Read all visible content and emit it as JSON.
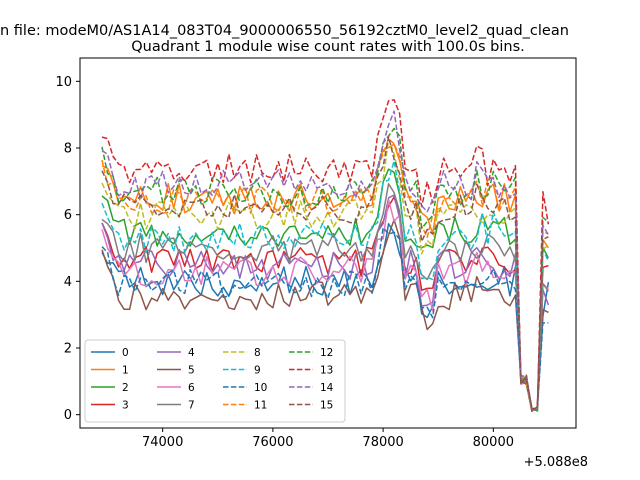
{
  "figure": {
    "suptitle": "n file: modeM0/AS1A14_083T04_9000006550_56192cztM0_level2_quad_clean",
    "offset_label": "+5.088e8"
  },
  "chart_data": {
    "type": "line",
    "title": "Quadrant 1 module wise count rates with 100.0s bins.",
    "xlabel": "",
    "ylabel": "",
    "x_offset": 508800000,
    "xlim": [
      72500,
      81500
    ],
    "ylim": [
      -0.4,
      10.7
    ],
    "x_ticks": [
      74000,
      76000,
      78000,
      80000
    ],
    "x_tick_labels": [
      "74000",
      "76000",
      "78000",
      "80000"
    ],
    "y_ticks": [
      0,
      2,
      4,
      6,
      8,
      10
    ],
    "y_tick_labels": [
      "0",
      "2",
      "4",
      "6",
      "8",
      "10"
    ],
    "grid": false,
    "legend": {
      "position": "lower-left",
      "columns": 4
    },
    "x_start": 72900,
    "x_step": 100,
    "series": [
      {
        "name": "0",
        "color": "#1f77b4",
        "dash": "solid",
        "base": 4.0
      },
      {
        "name": "1",
        "color": "#ff7f0e",
        "dash": "solid",
        "base": 6.5
      },
      {
        "name": "2",
        "color": "#2ca02c",
        "dash": "solid",
        "base": 5.5
      },
      {
        "name": "3",
        "color": "#d62728",
        "dash": "solid",
        "base": 4.6
      },
      {
        "name": "4",
        "color": "#9467bd",
        "dash": "solid",
        "base": 4.5
      },
      {
        "name": "5",
        "color": "#8c564b",
        "dash": "solid",
        "base": 3.6
      },
      {
        "name": "6",
        "color": "#e377c2",
        "dash": "solid",
        "base": 4.3
      },
      {
        "name": "7",
        "color": "#7f7f7f",
        "dash": "solid",
        "base": 5.0
      },
      {
        "name": "8",
        "color": "#bcbd22",
        "dash": "dashed",
        "base": 6.0
      },
      {
        "name": "9",
        "color": "#17becf",
        "dash": "dashed",
        "base": 5.3
      },
      {
        "name": "10",
        "color": "#1f77b4",
        "dash": "dashed",
        "base": 3.9
      },
      {
        "name": "11",
        "color": "#ff7f0e",
        "dash": "dashed",
        "base": 6.4
      },
      {
        "name": "12",
        "color": "#2ca02c",
        "dash": "dashed",
        "base": 6.7
      },
      {
        "name": "13",
        "color": "#d62728",
        "dash": "dashed",
        "base": 7.4
      },
      {
        "name": "14",
        "color": "#9467bd",
        "dash": "dashed",
        "base": 6.9
      },
      {
        "name": "15",
        "color": "#8c564b",
        "dash": "dashed",
        "base": 6.2
      }
    ]
  }
}
